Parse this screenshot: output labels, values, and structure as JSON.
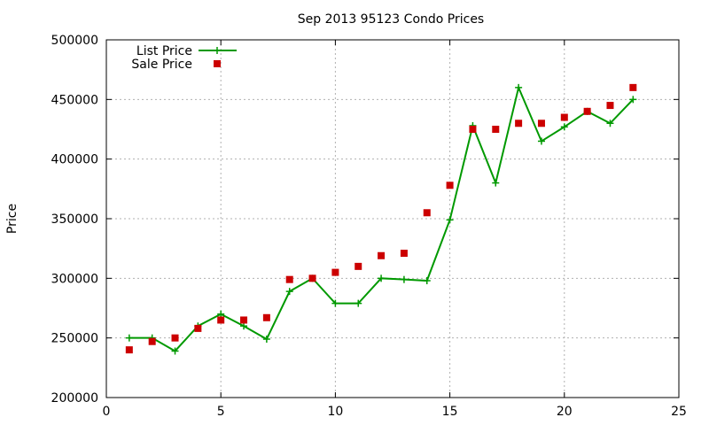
{
  "chart_data": {
    "type": "line",
    "title": "Sep 2013 95123 Condo Prices",
    "xlabel": "",
    "ylabel": "Price",
    "xlim": [
      0,
      25
    ],
    "ylim": [
      200000,
      500000
    ],
    "xticks": [
      0,
      5,
      10,
      15,
      20,
      25
    ],
    "yticks": [
      200000,
      250000,
      300000,
      350000,
      400000,
      450000,
      500000
    ],
    "grid": true,
    "legend_position": "top-left",
    "series": [
      {
        "name": "List Price",
        "style": "line-plus",
        "color": "#009900",
        "x": [
          1,
          2,
          3,
          4,
          5,
          6,
          7,
          8,
          9,
          10,
          11,
          12,
          13,
          14,
          15,
          16,
          17,
          18,
          19,
          20,
          21,
          22,
          23
        ],
        "values": [
          250000,
          250000,
          239000,
          260000,
          270000,
          260000,
          249000,
          289000,
          300000,
          279000,
          279000,
          300000,
          299000,
          298000,
          349000,
          428000,
          380000,
          460000,
          415000,
          427000,
          440000,
          430000,
          450000
        ]
      },
      {
        "name": "Sale Price",
        "style": "square",
        "color": "#cc0000",
        "x": [
          1,
          2,
          3,
          4,
          5,
          6,
          7,
          8,
          9,
          10,
          11,
          12,
          13,
          14,
          15,
          16,
          17,
          18,
          19,
          20,
          21,
          22,
          23
        ],
        "values": [
          240000,
          247000,
          250000,
          258000,
          265000,
          265000,
          267000,
          299000,
          300000,
          305000,
          310000,
          319000,
          321000,
          355000,
          378000,
          425000,
          425000,
          430000,
          430000,
          435000,
          440000,
          445000,
          460000
        ]
      }
    ]
  }
}
